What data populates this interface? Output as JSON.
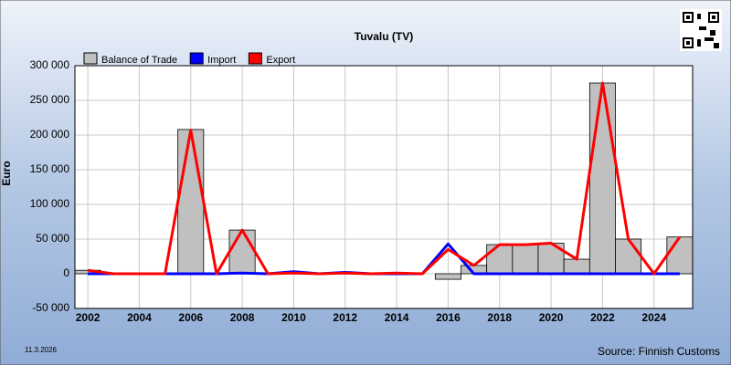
{
  "chart_data": {
    "type": "bar",
    "title": "Tuvalu (TV)",
    "y_label": "Euro",
    "date": "11.3.2026",
    "source": "Source: Finnish Customs",
    "x": [
      2002,
      2003,
      2004,
      2005,
      2006,
      2007,
      2008,
      2009,
      2010,
      2011,
      2012,
      2013,
      2014,
      2015,
      2016,
      2017,
      2018,
      2019,
      2020,
      2021,
      2022,
      2023,
      2024,
      2025
    ],
    "series": [
      {
        "name": "Balance of Trade",
        "mark": "bar",
        "color": "#c0c0c0",
        "values": [
          5000,
          0,
          0,
          0,
          208000,
          0,
          63000,
          0,
          2000,
          0,
          2000,
          0,
          1000,
          0,
          -8000,
          12000,
          42000,
          42000,
          44000,
          21000,
          275000,
          50000,
          0,
          53000
        ]
      },
      {
        "name": "Import",
        "mark": "line",
        "color": "#0000ff",
        "values": [
          0,
          0,
          0,
          0,
          0,
          0,
          1000,
          0,
          3000,
          0,
          2000,
          0,
          0,
          0,
          43000,
          0,
          0,
          0,
          0,
          0,
          0,
          0,
          0,
          0
        ]
      },
      {
        "name": "Export",
        "mark": "line",
        "color": "#ff0000",
        "values": [
          5000,
          0,
          0,
          0,
          207000,
          0,
          63000,
          0,
          1000,
          0,
          1000,
          0,
          1000,
          0,
          35000,
          12000,
          42000,
          42000,
          44000,
          21000,
          275000,
          50000,
          0,
          53000
        ]
      }
    ],
    "xlim": [
      2001.5,
      2025.5
    ],
    "xticks": [
      2002,
      2004,
      2006,
      2008,
      2010,
      2012,
      2014,
      2016,
      2018,
      2020,
      2022,
      2024
    ],
    "ylim": [
      -50000,
      300000
    ],
    "yticks": [
      {
        "value": -50000,
        "label": "-50 000"
      },
      0,
      {
        "value": 50000,
        "label": "50 000"
      },
      {
        "value": 100000,
        "label": "100 000"
      },
      {
        "value": 150000,
        "label": "150 000"
      },
      {
        "value": 200000,
        "label": "200 000"
      },
      {
        "value": 250000,
        "label": "250 000"
      },
      {
        "value": 300000,
        "label": "300 000"
      }
    ],
    "grid": true
  }
}
